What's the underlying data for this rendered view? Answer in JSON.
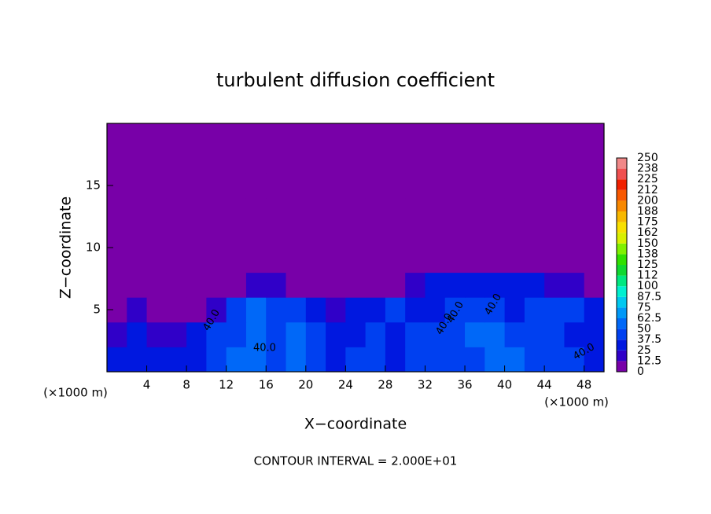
{
  "chart_data": {
    "type": "heatmap",
    "title": "turbulent diffusion coefficient",
    "xlabel": "X−coordinate",
    "ylabel": "Z−coordinate",
    "xunit": "(×1000 m)",
    "xunit_right": "(×1000 m)",
    "footnote": "CONTOUR INTERVAL = 2.000E+01",
    "contour_labels": [
      "40.0",
      "40.0",
      "40.0",
      "40.0",
      "40.0",
      "40.0"
    ],
    "xlim": [
      0,
      50
    ],
    "ylim": [
      0,
      20
    ],
    "xticks": [
      4,
      8,
      12,
      16,
      20,
      24,
      28,
      32,
      36,
      40,
      44,
      48
    ],
    "yticks": [
      5,
      10,
      15
    ],
    "x_edges": [
      0,
      2,
      4,
      6,
      8,
      10,
      12,
      14,
      16,
      18,
      20,
      22,
      24,
      26,
      28,
      30,
      32,
      34,
      36,
      38,
      40,
      42,
      44,
      46,
      48,
      50
    ],
    "z_edges": [
      0,
      2,
      4,
      6,
      8,
      10,
      12,
      14,
      16,
      18,
      20
    ],
    "z": [
      [
        30,
        25,
        30,
        25,
        35,
        40,
        50,
        55,
        45,
        50,
        45,
        35,
        40,
        45,
        35,
        40,
        45,
        40,
        45,
        50,
        50,
        45,
        40,
        45,
        35
      ],
      [
        20,
        25,
        15,
        20,
        25,
        40,
        45,
        50,
        40,
        50,
        40,
        25,
        35,
        40,
        35,
        40,
        45,
        45,
        50,
        55,
        45,
        40,
        40,
        35,
        30
      ],
      [
        10,
        15,
        10,
        5,
        5,
        15,
        45,
        50,
        45,
        45,
        30,
        20,
        30,
        35,
        40,
        35,
        35,
        40,
        40,
        45,
        35,
        40,
        40,
        40,
        35
      ],
      [
        0,
        0,
        0,
        0,
        0,
        0,
        10,
        20,
        15,
        5,
        0,
        0,
        0,
        5,
        10,
        20,
        25,
        25,
        25,
        30,
        30,
        25,
        20,
        15,
        10
      ],
      [
        0,
        0,
        0,
        0,
        0,
        0,
        0,
        0,
        0,
        0,
        0,
        0,
        0,
        0,
        0,
        0,
        0,
        0,
        0,
        0,
        0,
        5,
        10,
        0,
        0
      ],
      [
        0,
        0,
        0,
        0,
        0,
        0,
        0,
        0,
        0,
        0,
        0,
        0,
        0,
        0,
        0,
        0,
        0,
        0,
        0,
        0,
        0,
        0,
        0,
        0,
        0
      ],
      [
        0,
        0,
        0,
        0,
        0,
        0,
        0,
        0,
        0,
        0,
        0,
        0,
        0,
        0,
        0,
        0,
        0,
        0,
        0,
        0,
        0,
        0,
        0,
        0,
        0
      ],
      [
        0,
        0,
        0,
        0,
        0,
        0,
        0,
        0,
        0,
        0,
        0,
        0,
        0,
        0,
        0,
        0,
        0,
        0,
        0,
        0,
        0,
        0,
        0,
        0,
        0
      ],
      [
        0,
        0,
        0,
        0,
        0,
        0,
        0,
        0,
        0,
        0,
        0,
        0,
        0,
        0,
        0,
        0,
        0,
        0,
        0,
        0,
        0,
        0,
        0,
        0,
        0
      ],
      [
        0,
        0,
        0,
        0,
        0,
        0,
        0,
        0,
        0,
        0,
        0,
        0,
        0,
        0,
        0,
        0,
        0,
        0,
        0,
        0,
        0,
        0,
        0,
        0,
        0
      ]
    ],
    "levels": [
      0,
      12.5,
      25,
      37.5,
      50,
      62.5,
      75,
      87.5,
      100,
      {
        "value": 112.5,
        "label": "112"
      },
      125,
      {
        "value": 137.5,
        "label": "138"
      },
      150,
      {
        "value": 162.5,
        "label": "162"
      },
      175,
      {
        "value": 187.5,
        "label": "188"
      },
      200,
      {
        "value": 212.5,
        "label": "212"
      },
      225,
      {
        "value": 237.5,
        "label": "238"
      },
      250
    ],
    "colors": [
      "#7800a8",
      "#3000c8",
      "#0018e0",
      "#0040f0",
      "#0068f8",
      "#0098f8",
      "#00c8f0",
      "#00f0d0",
      "#00e880",
      "#10d830",
      "#30e000",
      "#80f000",
      "#d8f000",
      "#f8e000",
      "#f8b800",
      "#f88800",
      "#f85800",
      "#f02000",
      "#f05050",
      "#f08888"
    ]
  }
}
